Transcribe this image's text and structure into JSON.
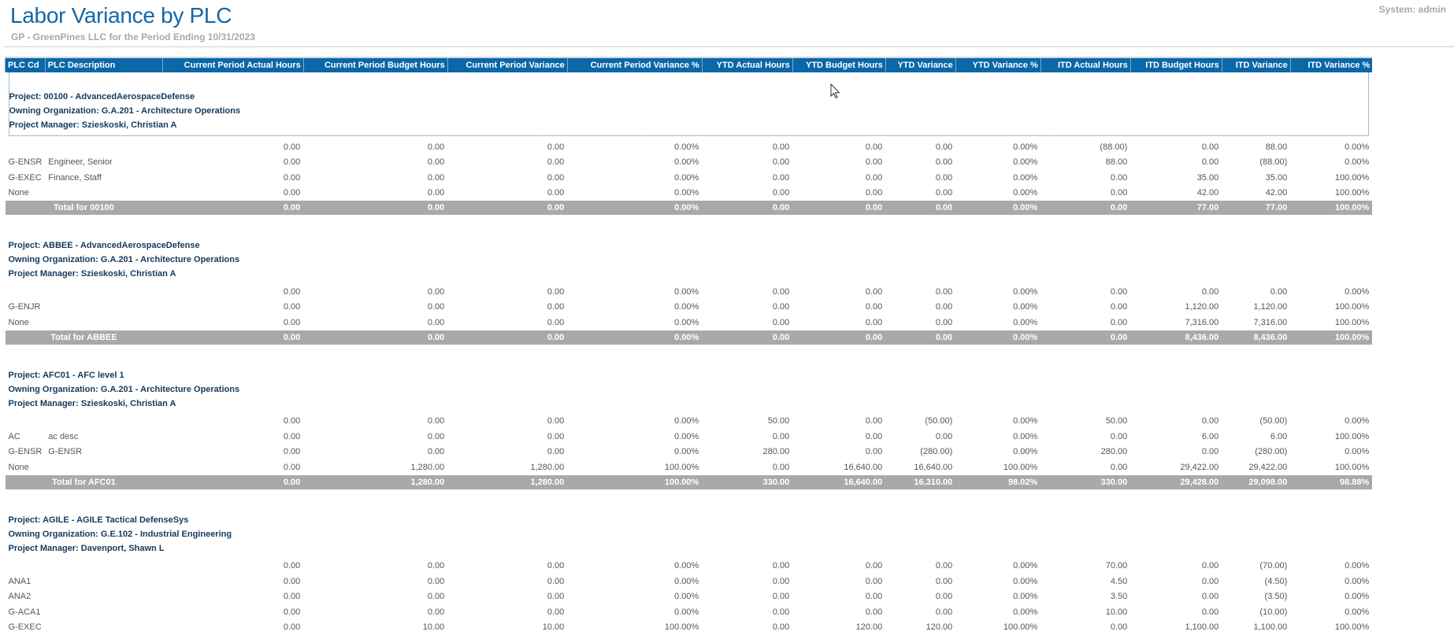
{
  "header": {
    "title": "Labor Variance by PLC",
    "subtitle": "GP - GreenPines LLC for the Period Ending 10/31/2023",
    "system": "System:  admin"
  },
  "colors": {
    "header_bg": "#0a67a8",
    "title": "#1467a8",
    "total_bg": "#a7aaa7"
  },
  "columns": [
    "PLC Cd",
    "PLC Description",
    "Current Period Actual Hours",
    "Current Period Budget Hours",
    "Current Period Variance",
    "Current Period Variance %",
    "YTD Actual Hours",
    "YTD Budget Hours",
    "YTD Variance",
    "YTD Variance %",
    "ITD Actual Hours",
    "ITD Budget Hours",
    "ITD Variance",
    "ITD Variance %"
  ],
  "projects": [
    {
      "project": "Project:  00100 -  AdvancedAerospaceDefense",
      "org": "Owning Organization:  G.A.201 - Architecture Operations",
      "manager": "Project Manager:  Szieskoski, Christian A",
      "selected": true,
      "rows": [
        [
          "",
          "",
          "0.00",
          "0.00",
          "0.00",
          "0.00%",
          "0.00",
          "0.00",
          "0.00",
          "0.00%",
          "(88.00)",
          "0.00",
          "88.00",
          "0.00%"
        ],
        [
          "G-ENSR",
          "Engineer, Senior",
          "0.00",
          "0.00",
          "0.00",
          "0.00%",
          "0.00",
          "0.00",
          "0.00",
          "0.00%",
          "88.00",
          "0.00",
          "(88.00)",
          "0.00%"
        ],
        [
          "G-EXEC",
          "Finance, Staff",
          "0.00",
          "0.00",
          "0.00",
          "0.00%",
          "0.00",
          "0.00",
          "0.00",
          "0.00%",
          "0.00",
          "35.00",
          "35.00",
          "100.00%"
        ],
        [
          "None",
          "",
          "0.00",
          "0.00",
          "0.00",
          "0.00%",
          "0.00",
          "0.00",
          "0.00",
          "0.00%",
          "0.00",
          "42.00",
          "42.00",
          "100.00%"
        ]
      ],
      "total": [
        "Total for 00100",
        "0.00",
        "0.00",
        "0.00",
        "0.00%",
        "0.00",
        "0.00",
        "0.00",
        "0.00%",
        "0.00",
        "77.00",
        "77.00",
        "100.00%"
      ]
    },
    {
      "project": "Project:  ABBEE -  AdvancedAerospaceDefense",
      "org": "Owning Organization:  G.A.201 - Architecture Operations",
      "manager": "Project Manager:  Szieskoski, Christian A",
      "rows": [
        [
          "",
          "",
          "0.00",
          "0.00",
          "0.00",
          "0.00%",
          "0.00",
          "0.00",
          "0.00",
          "0.00%",
          "0.00",
          "0.00",
          "0.00",
          "0.00%"
        ],
        [
          "G-ENJR",
          "",
          "0.00",
          "0.00",
          "0.00",
          "0.00%",
          "0.00",
          "0.00",
          "0.00",
          "0.00%",
          "0.00",
          "1,120.00",
          "1,120.00",
          "100.00%"
        ],
        [
          "None",
          "",
          "0.00",
          "0.00",
          "0.00",
          "0.00%",
          "0.00",
          "0.00",
          "0.00",
          "0.00%",
          "0.00",
          "7,316.00",
          "7,316.00",
          "100.00%"
        ]
      ],
      "total": [
        "Total for ABBEE",
        "0.00",
        "0.00",
        "0.00",
        "0.00%",
        "0.00",
        "0.00",
        "0.00",
        "0.00%",
        "0.00",
        "8,436.00",
        "8,436.00",
        "100.00%"
      ]
    },
    {
      "project": "Project:  AFC01 -  AFC level 1",
      "org": "Owning Organization:  G.A.201 - Architecture Operations",
      "manager": "Project Manager:  Szieskoski, Christian A",
      "rows": [
        [
          "",
          "",
          "0.00",
          "0.00",
          "0.00",
          "0.00%",
          "50.00",
          "0.00",
          "(50.00)",
          "0.00%",
          "50.00",
          "0.00",
          "(50.00)",
          "0.00%"
        ],
        [
          "AC",
          "ac desc",
          "0.00",
          "0.00",
          "0.00",
          "0.00%",
          "0.00",
          "0.00",
          "0.00",
          "0.00%",
          "0.00",
          "6.00",
          "6.00",
          "100.00%"
        ],
        [
          "G-ENSR",
          "G-ENSR",
          "0.00",
          "0.00",
          "0.00",
          "0.00%",
          "280.00",
          "0.00",
          "(280.00)",
          "0.00%",
          "280.00",
          "0.00",
          "(280.00)",
          "0.00%"
        ],
        [
          "None",
          "",
          "0.00",
          "1,280.00",
          "1,280.00",
          "100.00%",
          "0.00",
          "16,640.00",
          "16,640.00",
          "100.00%",
          "0.00",
          "29,422.00",
          "29,422.00",
          "100.00%"
        ]
      ],
      "total": [
        "Total for AFC01",
        "0.00",
        "1,280.00",
        "1,280.00",
        "100.00%",
        "330.00",
        "16,640.00",
        "16,310.00",
        "98.02%",
        "330.00",
        "29,428.00",
        "29,098.00",
        "98.88%"
      ]
    },
    {
      "project": "Project:  AGILE -  AGILE Tactical DefenseSys",
      "org": "Owning Organization:  G.E.102 - Industrial Engineering",
      "manager": "Project Manager:  Davenport, Shawn L",
      "rows": [
        [
          "",
          "",
          "0.00",
          "0.00",
          "0.00",
          "0.00%",
          "0.00",
          "0.00",
          "0.00",
          "0.00%",
          "70.00",
          "0.00",
          "(70.00)",
          "0.00%"
        ],
        [
          "ANA1",
          "",
          "0.00",
          "0.00",
          "0.00",
          "0.00%",
          "0.00",
          "0.00",
          "0.00",
          "0.00%",
          "4.50",
          "0.00",
          "(4.50)",
          "0.00%"
        ],
        [
          "ANA2",
          "",
          "0.00",
          "0.00",
          "0.00",
          "0.00%",
          "0.00",
          "0.00",
          "0.00",
          "0.00%",
          "3.50",
          "0.00",
          "(3.50)",
          "0.00%"
        ],
        [
          "G-ACA1",
          "",
          "0.00",
          "0.00",
          "0.00",
          "0.00%",
          "0.00",
          "0.00",
          "0.00",
          "0.00%",
          "10.00",
          "0.00",
          "(10.00)",
          "0.00%"
        ],
        [
          "G-EXEC",
          "",
          "0.00",
          "10.00",
          "10.00",
          "100.00%",
          "0.00",
          "120.00",
          "120.00",
          "100.00%",
          "0.00",
          "1,100.00",
          "1,100.00",
          "100.00%"
        ]
      ]
    }
  ]
}
